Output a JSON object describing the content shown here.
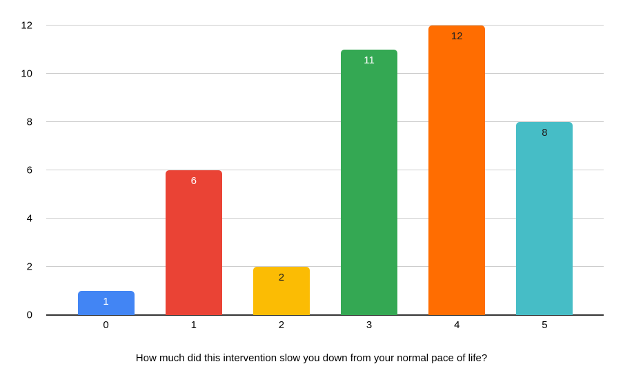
{
  "chart_data": {
    "type": "bar",
    "categories": [
      "0",
      "1",
      "2",
      "3",
      "4",
      "5"
    ],
    "values": [
      1,
      6,
      2,
      11,
      12,
      8
    ],
    "bar_colors": [
      "#4285F4",
      "#EA4335",
      "#FBBC04",
      "#34A853",
      "#FF6D01",
      "#46BDC6"
    ],
    "bar_label_colors": [
      "#ffffff",
      "#ffffff",
      "#212121",
      "#ffffff",
      "#212121",
      "#212121"
    ],
    "title": "How much did this intervention slow you down from your normal pace of life?",
    "title_position": "bottom",
    "xlabel": "",
    "ylabel": "",
    "ylim": [
      0,
      12
    ],
    "yticks": [
      0,
      2,
      4,
      6,
      8,
      10,
      12
    ],
    "grid": true,
    "legend": "none"
  },
  "colors": {
    "background": "#ffffff",
    "gridline": "#cccccc",
    "axis_line": "#333333",
    "tick_text": "#000000",
    "title_text": "#000000"
  }
}
